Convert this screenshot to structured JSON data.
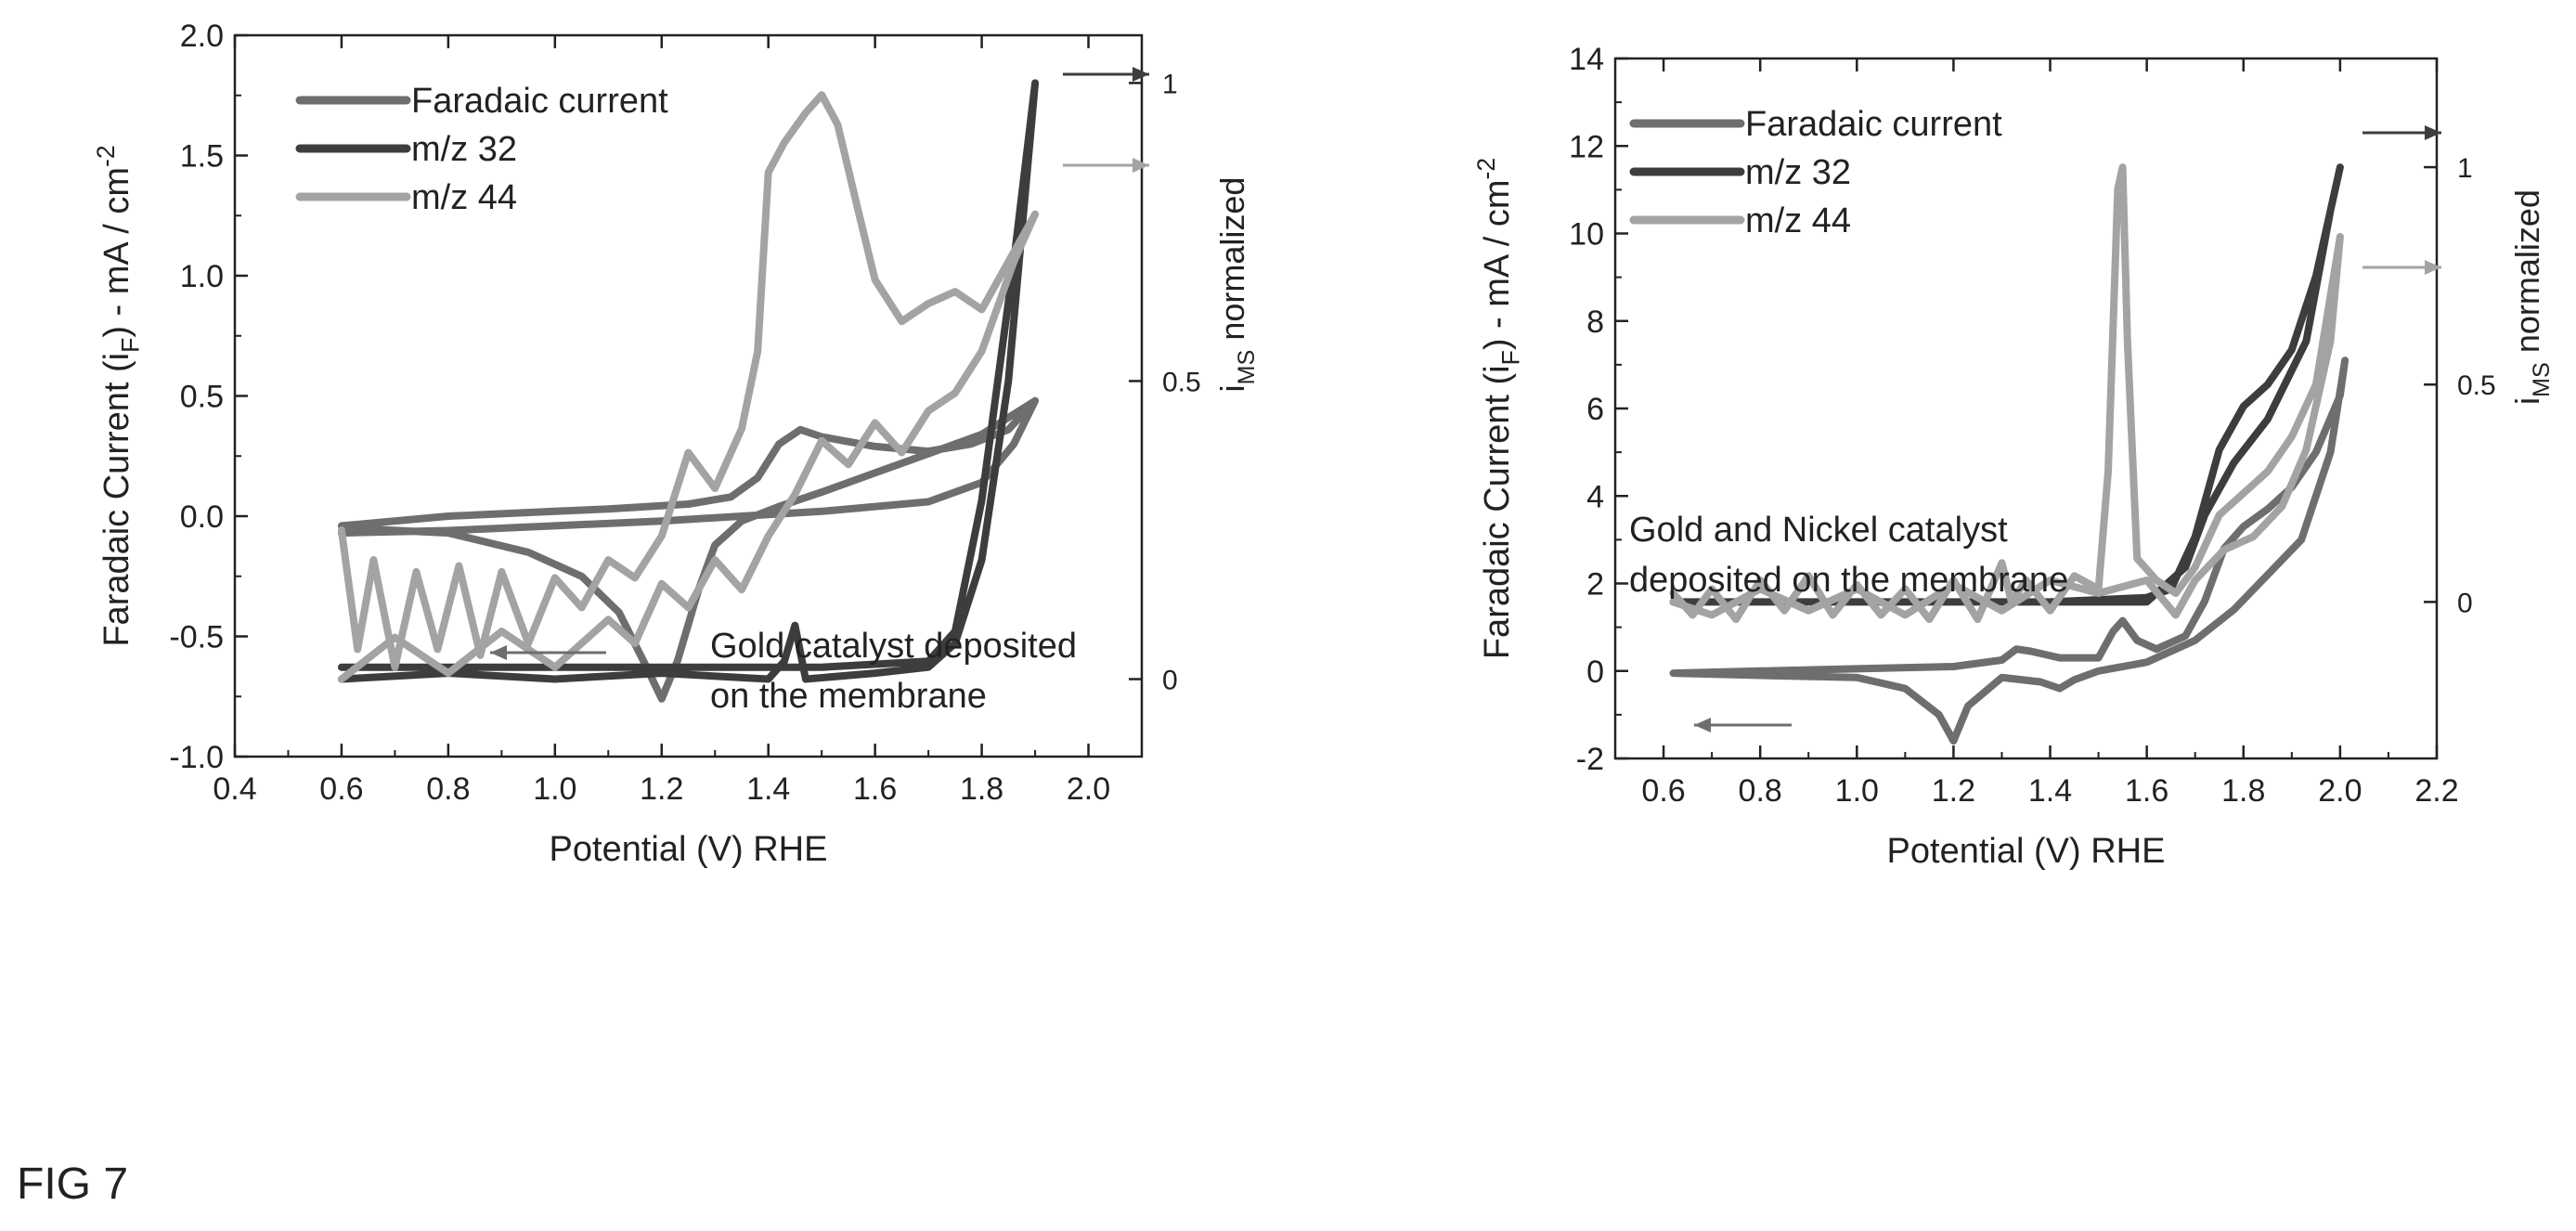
{
  "figure_label": "FIG 7",
  "colors": {
    "faradaic": "#6e6e6e",
    "mz32": "#3d3d3d",
    "mz44": "#a3a3a3",
    "axis": "#222222"
  },
  "chart_data": [
    {
      "type": "line",
      "annotation": [
        "Gold catalyst deposited",
        "on the membrane"
      ],
      "xlabel": "Potential (V) RHE",
      "ylabel": "Faradaic Current (i_F) - mA / cm^-2",
      "y2label": "i_MS normalized",
      "xlim": [
        0.4,
        2.1
      ],
      "ylim": [
        -1.0,
        2.0
      ],
      "y2lim": [
        -0.13,
        1.08
      ],
      "x_ticks": [
        0.4,
        0.6,
        0.8,
        1.0,
        1.2,
        1.4,
        1.6,
        1.8,
        2.0
      ],
      "x_tick_labels": [
        "0.4",
        "0.6",
        "0.8",
        "1.0",
        "1.2",
        "1.4",
        "1.6",
        "1.8",
        "2.0"
      ],
      "y_ticks": [
        -1.0,
        -0.5,
        0.0,
        0.5,
        1.0,
        1.5,
        2.0
      ],
      "y_tick_labels": [
        "-1.0",
        "-0.5",
        "0.0",
        "0.5",
        "1.0",
        "1.5",
        "2.0"
      ],
      "y2_ticks": [
        0,
        0.5,
        1
      ],
      "y2_tick_labels": [
        "0",
        "0.5",
        "1"
      ],
      "legend_position": "top-left",
      "series": [
        {
          "name": "Faradaic current",
          "axis": "left",
          "color": "#6e6e6e",
          "points": [
            [
              0.6,
              -0.07
            ],
            [
              0.8,
              -0.06
            ],
            [
              1.0,
              -0.04
            ],
            [
              1.2,
              -0.02
            ],
            [
              1.35,
              0.0
            ],
            [
              1.5,
              0.02
            ],
            [
              1.7,
              0.06
            ],
            [
              1.8,
              0.14
            ],
            [
              1.86,
              0.3
            ],
            [
              1.9,
              0.48
            ],
            [
              1.85,
              0.36
            ],
            [
              1.78,
              0.3
            ],
            [
              1.7,
              0.27
            ],
            [
              1.6,
              0.29
            ],
            [
              1.5,
              0.33
            ],
            [
              1.46,
              0.36
            ],
            [
              1.42,
              0.3
            ],
            [
              1.38,
              0.16
            ],
            [
              1.33,
              0.08
            ],
            [
              1.25,
              0.05
            ],
            [
              1.1,
              0.03
            ],
            [
              1.0,
              0.02
            ],
            [
              0.8,
              0.0
            ],
            [
              0.6,
              -0.04
            ],
            [
              0.62,
              -0.05
            ],
            [
              0.8,
              -0.07
            ],
            [
              0.95,
              -0.15
            ],
            [
              1.05,
              -0.25
            ],
            [
              1.12,
              -0.4
            ],
            [
              1.17,
              -0.62
            ],
            [
              1.2,
              -0.76
            ],
            [
              1.23,
              -0.6
            ],
            [
              1.27,
              -0.3
            ],
            [
              1.3,
              -0.12
            ],
            [
              1.35,
              -0.02
            ],
            [
              1.42,
              0.04
            ],
            [
              1.5,
              0.1
            ],
            [
              1.6,
              0.18
            ],
            [
              1.7,
              0.26
            ],
            [
              1.8,
              0.34
            ],
            [
              1.9,
              0.48
            ]
          ]
        },
        {
          "name": "m/z 32",
          "axis": "right",
          "color": "#3d3d3d",
          "points": [
            [
              0.6,
              0.0
            ],
            [
              0.8,
              0.01
            ],
            [
              1.0,
              0.0
            ],
            [
              1.2,
              0.01
            ],
            [
              1.4,
              0.0
            ],
            [
              1.43,
              0.03
            ],
            [
              1.45,
              0.09
            ],
            [
              1.47,
              0.0
            ],
            [
              1.6,
              0.01
            ],
            [
              1.7,
              0.02
            ],
            [
              1.75,
              0.06
            ],
            [
              1.8,
              0.2
            ],
            [
              1.85,
              0.5
            ],
            [
              1.88,
              0.8
            ],
            [
              1.9,
              1.0
            ],
            [
              1.86,
              0.7
            ],
            [
              1.8,
              0.3
            ],
            [
              1.75,
              0.08
            ],
            [
              1.7,
              0.03
            ],
            [
              1.5,
              0.02
            ],
            [
              1.2,
              0.02
            ],
            [
              0.9,
              0.02
            ],
            [
              0.6,
              0.02
            ]
          ]
        },
        {
          "name": "m/z 44",
          "axis": "right",
          "color": "#a3a3a3",
          "points": [
            [
              0.6,
              0.25
            ],
            [
              0.63,
              0.05
            ],
            [
              0.66,
              0.2
            ],
            [
              0.7,
              0.02
            ],
            [
              0.74,
              0.18
            ],
            [
              0.78,
              0.05
            ],
            [
              0.82,
              0.19
            ],
            [
              0.86,
              0.04
            ],
            [
              0.9,
              0.18
            ],
            [
              0.95,
              0.06
            ],
            [
              1.0,
              0.17
            ],
            [
              1.05,
              0.12
            ],
            [
              1.1,
              0.2
            ],
            [
              1.15,
              0.17
            ],
            [
              1.2,
              0.24
            ],
            [
              1.25,
              0.38
            ],
            [
              1.3,
              0.32
            ],
            [
              1.35,
              0.42
            ],
            [
              1.38,
              0.55
            ],
            [
              1.4,
              0.85
            ],
            [
              1.43,
              0.9
            ],
            [
              1.47,
              0.95
            ],
            [
              1.5,
              0.98
            ],
            [
              1.53,
              0.93
            ],
            [
              1.57,
              0.78
            ],
            [
              1.6,
              0.67
            ],
            [
              1.65,
              0.6
            ],
            [
              1.7,
              0.63
            ],
            [
              1.75,
              0.65
            ],
            [
              1.8,
              0.62
            ],
            [
              1.85,
              0.7
            ],
            [
              1.9,
              0.78
            ],
            [
              1.86,
              0.7
            ],
            [
              1.8,
              0.55
            ],
            [
              1.75,
              0.48
            ],
            [
              1.7,
              0.45
            ],
            [
              1.65,
              0.38
            ],
            [
              1.6,
              0.43
            ],
            [
              1.55,
              0.36
            ],
            [
              1.5,
              0.4
            ],
            [
              1.45,
              0.31
            ],
            [
              1.4,
              0.24
            ],
            [
              1.35,
              0.15
            ],
            [
              1.3,
              0.2
            ],
            [
              1.25,
              0.12
            ],
            [
              1.2,
              0.16
            ],
            [
              1.15,
              0.06
            ],
            [
              1.1,
              0.1
            ],
            [
              1.0,
              0.02
            ],
            [
              0.9,
              0.08
            ],
            [
              0.8,
              0.01
            ],
            [
              0.7,
              0.07
            ],
            [
              0.6,
              0.0
            ]
          ]
        }
      ]
    },
    {
      "type": "line",
      "annotation": [
        "Gold and Nickel catalyst",
        "deposited on the membrane"
      ],
      "xlabel": "Potential (V) RHE",
      "ylabel": "Faradaic Current (i_F) - mA / cm^-2",
      "y2label": "i_MS normalized",
      "xlim": [
        0.5,
        2.2
      ],
      "ylim": [
        -2,
        14
      ],
      "y2lim": [
        -0.36,
        1.25
      ],
      "x_ticks": [
        0.6,
        0.8,
        1.0,
        1.2,
        1.4,
        1.6,
        1.8,
        2.0,
        2.2
      ],
      "x_tick_labels": [
        "0.6",
        "0.8",
        "1.0",
        "1.2",
        "1.4",
        "1.6",
        "1.8",
        "2.0",
        "2.2"
      ],
      "y_ticks": [
        -2,
        0,
        2,
        4,
        6,
        8,
        10,
        12,
        14
      ],
      "y_tick_labels": [
        "-2",
        "0",
        "2",
        "4",
        "6",
        "8",
        "10",
        "12",
        "14"
      ],
      "y2_ticks": [
        0,
        0.5,
        1
      ],
      "y2_tick_labels": [
        "0",
        "0.5",
        "1"
      ],
      "legend_position": "top-left",
      "series": [
        {
          "name": "Faradaic current",
          "axis": "left",
          "color": "#6e6e6e",
          "points": [
            [
              0.62,
              -0.05
            ],
            [
              0.8,
              0.0
            ],
            [
              1.0,
              0.05
            ],
            [
              1.2,
              0.1
            ],
            [
              1.3,
              0.25
            ],
            [
              1.33,
              0.5
            ],
            [
              1.36,
              0.45
            ],
            [
              1.42,
              0.3
            ],
            [
              1.5,
              0.3
            ],
            [
              1.53,
              0.9
            ],
            [
              1.55,
              1.15
            ],
            [
              1.58,
              0.7
            ],
            [
              1.62,
              0.5
            ],
            [
              1.68,
              0.8
            ],
            [
              1.72,
              1.6
            ],
            [
              1.76,
              2.8
            ],
            [
              1.8,
              3.3
            ],
            [
              1.85,
              3.7
            ],
            [
              1.9,
              4.2
            ],
            [
              1.95,
              5.0
            ],
            [
              2.0,
              6.3
            ],
            [
              2.01,
              7.1
            ],
            [
              1.98,
              5.0
            ],
            [
              1.92,
              3.0
            ],
            [
              1.85,
              2.2
            ],
            [
              1.78,
              1.4
            ],
            [
              1.7,
              0.7
            ],
            [
              1.6,
              0.2
            ],
            [
              1.5,
              0.0
            ],
            [
              1.45,
              -0.2
            ],
            [
              1.42,
              -0.4
            ],
            [
              1.38,
              -0.25
            ],
            [
              1.3,
              -0.15
            ],
            [
              1.23,
              -0.8
            ],
            [
              1.2,
              -1.6
            ],
            [
              1.17,
              -1.0
            ],
            [
              1.1,
              -0.4
            ],
            [
              1.0,
              -0.15
            ],
            [
              0.8,
              -0.1
            ],
            [
              0.62,
              -0.05
            ]
          ]
        },
        {
          "name": "m/z 32",
          "axis": "right",
          "color": "#3d3d3d",
          "points": [
            [
              0.62,
              0.0
            ],
            [
              1.0,
              0.0
            ],
            [
              1.4,
              0.0
            ],
            [
              1.6,
              0.01
            ],
            [
              1.65,
              0.03
            ],
            [
              1.7,
              0.15
            ],
            [
              1.75,
              0.35
            ],
            [
              1.8,
              0.45
            ],
            [
              1.85,
              0.5
            ],
            [
              1.9,
              0.58
            ],
            [
              1.95,
              0.75
            ],
            [
              2.0,
              1.0
            ],
            [
              1.98,
              0.9
            ],
            [
              1.93,
              0.6
            ],
            [
              1.85,
              0.42
            ],
            [
              1.78,
              0.32
            ],
            [
              1.72,
              0.2
            ],
            [
              1.68,
              0.08
            ],
            [
              1.6,
              0.0
            ],
            [
              1.2,
              0.0
            ],
            [
              0.62,
              0.0
            ]
          ]
        },
        {
          "name": "m/z 44",
          "axis": "right",
          "color": "#a3a3a3",
          "points": [
            [
              0.62,
              0.02
            ],
            [
              0.66,
              -0.03
            ],
            [
              0.7,
              0.03
            ],
            [
              0.75,
              -0.04
            ],
            [
              0.8,
              0.05
            ],
            [
              0.85,
              -0.02
            ],
            [
              0.9,
              0.06
            ],
            [
              0.95,
              -0.03
            ],
            [
              1.0,
              0.04
            ],
            [
              1.05,
              -0.03
            ],
            [
              1.1,
              0.03
            ],
            [
              1.15,
              -0.04
            ],
            [
              1.2,
              0.05
            ],
            [
              1.25,
              -0.04
            ],
            [
              1.3,
              0.09
            ],
            [
              1.32,
              0.0
            ],
            [
              1.35,
              0.05
            ],
            [
              1.4,
              -0.02
            ],
            [
              1.45,
              0.06
            ],
            [
              1.5,
              0.03
            ],
            [
              1.52,
              0.3
            ],
            [
              1.54,
              0.95
            ],
            [
              1.55,
              1.0
            ],
            [
              1.56,
              0.6
            ],
            [
              1.58,
              0.1
            ],
            [
              1.62,
              0.05
            ],
            [
              1.66,
              0.02
            ],
            [
              1.7,
              0.08
            ],
            [
              1.75,
              0.2
            ],
            [
              1.8,
              0.25
            ],
            [
              1.85,
              0.3
            ],
            [
              1.9,
              0.38
            ],
            [
              1.95,
              0.5
            ],
            [
              2.0,
              0.84
            ],
            [
              1.98,
              0.6
            ],
            [
              1.93,
              0.35
            ],
            [
              1.88,
              0.22
            ],
            [
              1.82,
              0.15
            ],
            [
              1.76,
              0.12
            ],
            [
              1.7,
              0.05
            ],
            [
              1.66,
              -0.03
            ],
            [
              1.6,
              0.05
            ],
            [
              1.5,
              0.02
            ],
            [
              1.4,
              0.05
            ],
            [
              1.3,
              -0.02
            ],
            [
              1.2,
              0.04
            ],
            [
              1.1,
              -0.03
            ],
            [
              1.0,
              0.03
            ],
            [
              0.9,
              -0.02
            ],
            [
              0.8,
              0.03
            ],
            [
              0.7,
              -0.03
            ],
            [
              0.62,
              0.0
            ]
          ]
        }
      ]
    }
  ]
}
